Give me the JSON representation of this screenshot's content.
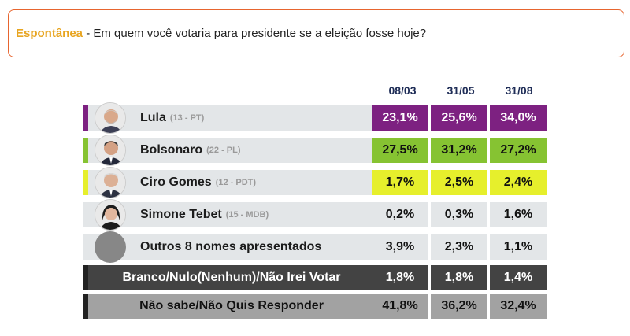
{
  "question": {
    "tag": "Espontânea",
    "text": " - Em quem você votaria para presidente se a eleição fosse hoje?"
  },
  "colors": {
    "lula": "#7d2181",
    "bolsonaro": "#86c332",
    "ciro": "#e6ef2c",
    "neutral": "#e3e6e8",
    "dark": "#434343",
    "grey": "#a2a2a2"
  },
  "chart_data": {
    "type": "table",
    "columns": [
      "08/03",
      "31/05",
      "31/08"
    ],
    "rows": [
      {
        "name": "Lula",
        "party": "(13 - PT)",
        "values": [
          "23,1%",
          "25,6%",
          "34,0%"
        ],
        "color": "#7d2181",
        "text_color": "#ffffff",
        "avatar": "photo-lula"
      },
      {
        "name": "Bolsonaro",
        "party": "(22 - PL)",
        "values": [
          "27,5%",
          "31,2%",
          "27,2%"
        ],
        "color": "#86c332",
        "text_color": "#111111",
        "avatar": "photo-bolsonaro"
      },
      {
        "name": "Ciro Gomes",
        "party": "(12 - PDT)",
        "values": [
          "1,7%",
          "2,5%",
          "2,4%"
        ],
        "color": "#e6ef2c",
        "text_color": "#111111",
        "avatar": "photo-ciro"
      },
      {
        "name": "Simone Tebet",
        "party": "(15 - MDB)",
        "values": [
          "0,2%",
          "0,3%",
          "1,6%"
        ],
        "color": "#e3e6e8",
        "text_color": "#111111",
        "avatar": "photo-simone"
      },
      {
        "name": "Outros 8 nomes apresentados",
        "party": "",
        "values": [
          "3,9%",
          "2,3%",
          "1,1%"
        ],
        "color": "#e3e6e8",
        "text_color": "#111111",
        "avatar": "grey-circle"
      },
      {
        "name": "Branco/Nulo(Nenhum)/Não Irei Votar",
        "party": "",
        "values": [
          "1,8%",
          "1,8%",
          "1,4%"
        ],
        "color": "#434343",
        "text_color": "#ffffff",
        "avatar": ""
      },
      {
        "name": "Não sabe/Não Quis Responder",
        "party": "",
        "values": [
          "41,8%",
          "36,2%",
          "32,4%"
        ],
        "color": "#a2a2a2",
        "text_color": "#111111",
        "avatar": ""
      }
    ]
  }
}
